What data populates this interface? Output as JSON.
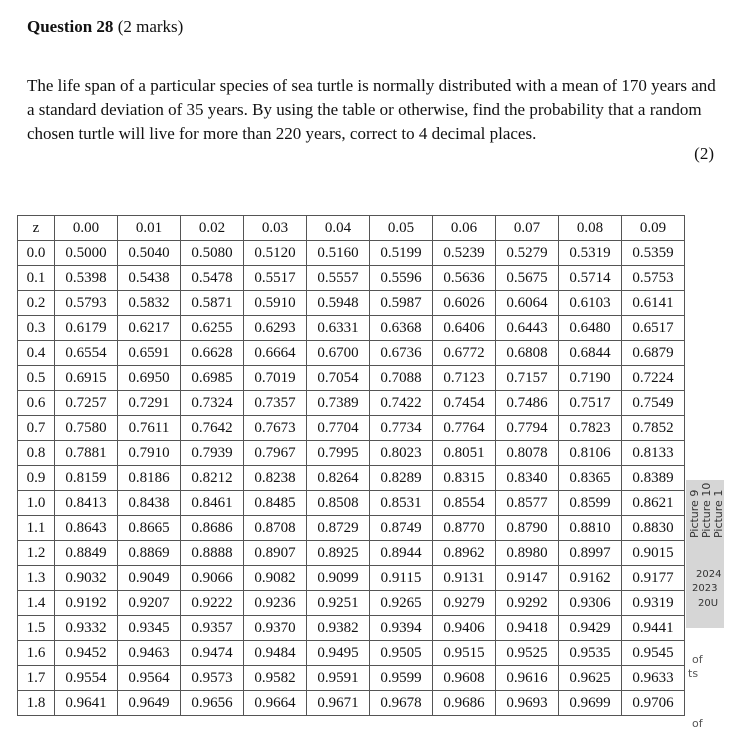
{
  "question": {
    "title": "Question 28",
    "marks": "(2 marks)",
    "text": "The life span of a particular species of sea turtle is normally distributed with a mean of 170 years and a standard deviation of 35 years. By using the table or otherwise, find the probability that a random chosen turtle will live for more than 220 years, correct to 4 decimal places.",
    "marks_right": "(2)"
  },
  "table": {
    "header": [
      "z",
      "0.00",
      "0.01",
      "0.02",
      "0.03",
      "0.04",
      "0.05",
      "0.06",
      "0.07",
      "0.08",
      "0.09"
    ],
    "rows": [
      [
        "0.0",
        "0.5000",
        "0.5040",
        "0.5080",
        "0.5120",
        "0.5160",
        "0.5199",
        "0.5239",
        "0.5279",
        "0.5319",
        "0.5359"
      ],
      [
        "0.1",
        "0.5398",
        "0.5438",
        "0.5478",
        "0.5517",
        "0.5557",
        "0.5596",
        "0.5636",
        "0.5675",
        "0.5714",
        "0.5753"
      ],
      [
        "0.2",
        "0.5793",
        "0.5832",
        "0.5871",
        "0.5910",
        "0.5948",
        "0.5987",
        "0.6026",
        "0.6064",
        "0.6103",
        "0.6141"
      ],
      [
        "0.3",
        "0.6179",
        "0.6217",
        "0.6255",
        "0.6293",
        "0.6331",
        "0.6368",
        "0.6406",
        "0.6443",
        "0.6480",
        "0.6517"
      ],
      [
        "0.4",
        "0.6554",
        "0.6591",
        "0.6628",
        "0.6664",
        "0.6700",
        "0.6736",
        "0.6772",
        "0.6808",
        "0.6844",
        "0.6879"
      ],
      [
        "0.5",
        "0.6915",
        "0.6950",
        "0.6985",
        "0.7019",
        "0.7054",
        "0.7088",
        "0.7123",
        "0.7157",
        "0.7190",
        "0.7224"
      ],
      [
        "0.6",
        "0.7257",
        "0.7291",
        "0.7324",
        "0.7357",
        "0.7389",
        "0.7422",
        "0.7454",
        "0.7486",
        "0.7517",
        "0.7549"
      ],
      [
        "0.7",
        "0.7580",
        "0.7611",
        "0.7642",
        "0.7673",
        "0.7704",
        "0.7734",
        "0.7764",
        "0.7794",
        "0.7823",
        "0.7852"
      ],
      [
        "0.8",
        "0.7881",
        "0.7910",
        "0.7939",
        "0.7967",
        "0.7995",
        "0.8023",
        "0.8051",
        "0.8078",
        "0.8106",
        "0.8133"
      ],
      [
        "0.9",
        "0.8159",
        "0.8186",
        "0.8212",
        "0.8238",
        "0.8264",
        "0.8289",
        "0.8315",
        "0.8340",
        "0.8365",
        "0.8389"
      ],
      [
        "1.0",
        "0.8413",
        "0.8438",
        "0.8461",
        "0.8485",
        "0.8508",
        "0.8531",
        "0.8554",
        "0.8577",
        "0.8599",
        "0.8621"
      ],
      [
        "1.1",
        "0.8643",
        "0.8665",
        "0.8686",
        "0.8708",
        "0.8729",
        "0.8749",
        "0.8770",
        "0.8790",
        "0.8810",
        "0.8830"
      ],
      [
        "1.2",
        "0.8849",
        "0.8869",
        "0.8888",
        "0.8907",
        "0.8925",
        "0.8944",
        "0.8962",
        "0.8980",
        "0.8997",
        "0.9015"
      ],
      [
        "1.3",
        "0.9032",
        "0.9049",
        "0.9066",
        "0.9082",
        "0.9099",
        "0.9115",
        "0.9131",
        "0.9147",
        "0.9162",
        "0.9177"
      ],
      [
        "1.4",
        "0.9192",
        "0.9207",
        "0.9222",
        "0.9236",
        "0.9251",
        "0.9265",
        "0.9279",
        "0.9292",
        "0.9306",
        "0.9319"
      ],
      [
        "1.5",
        "0.9332",
        "0.9345",
        "0.9357",
        "0.9370",
        "0.9382",
        "0.9394",
        "0.9406",
        "0.9418",
        "0.9429",
        "0.9441"
      ],
      [
        "1.6",
        "0.9452",
        "0.9463",
        "0.9474",
        "0.9484",
        "0.9495",
        "0.9505",
        "0.9515",
        "0.9525",
        "0.9535",
        "0.9545"
      ],
      [
        "1.7",
        "0.9554",
        "0.9564",
        "0.9573",
        "0.9582",
        "0.9591",
        "0.9599",
        "0.9608",
        "0.9616",
        "0.9625",
        "0.9633"
      ],
      [
        "1.8",
        "0.9641",
        "0.9649",
        "0.9656",
        "0.9664",
        "0.9671",
        "0.9678",
        "0.9686",
        "0.9693",
        "0.9699",
        "0.9706"
      ]
    ]
  },
  "overlay": {
    "label_1": "Picture 1",
    "label_2": "Picture 10",
    "label_3": "Picture 9",
    "side_1": "2024",
    "side_2": "2023",
    "side_3": "20U",
    "tiny_1": "of",
    "tiny_2": "ts",
    "tiny_3": "of"
  }
}
